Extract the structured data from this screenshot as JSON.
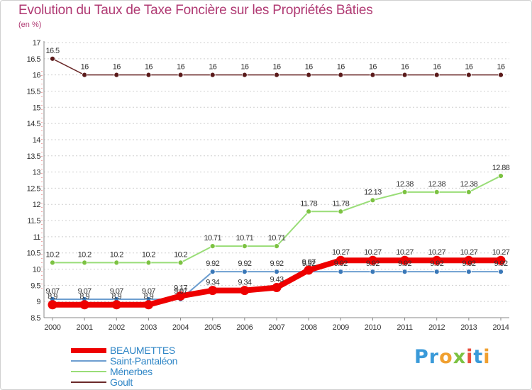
{
  "title": "Evolution du Taux de Taxe Foncière sur les Propriétés Bâties",
  "unit_label": "(en %)",
  "logo_text": "Proxiti",
  "colors": {
    "title": "#b03a73",
    "legend_text": "#2f86c6",
    "grid": "#cccccc"
  },
  "chart_data": {
    "type": "line",
    "title": "Evolution du Taux de Taxe Foncière sur les Propriétés Bâties",
    "ylabel": "(en %)",
    "xlabel": "",
    "x": [
      "2000",
      "2001",
      "2002",
      "2003",
      "2004",
      "2005",
      "2006",
      "2007",
      "2008",
      "2009",
      "2010",
      "2011",
      "2012",
      "2013",
      "2014"
    ],
    "ylim": [
      8.5,
      17
    ],
    "yticks": [
      "8.5",
      "9",
      "9.5",
      "10",
      "10.5",
      "11",
      "11.5",
      "12",
      "12.5",
      "13",
      "13.5",
      "14",
      "14.5",
      "15",
      "15.5",
      "16",
      "16.5",
      "17"
    ],
    "grid": "dotted horizontal",
    "legend_position": "bottom-left",
    "series": [
      {
        "name": "BEAUMETTES",
        "color": "#ee0000",
        "values": [
          8.9,
          8.9,
          8.9,
          8.9,
          9.17,
          9.34,
          9.34,
          9.43,
          9.97,
          10.27,
          10.27,
          10.27,
          10.27,
          10.27,
          10.27
        ],
        "labels": [
          "8.9",
          "8.9",
          "8.9",
          "8.9",
          "9.17",
          "9.34",
          "9.34",
          "9.43",
          "9.97",
          "10.27",
          "10.27",
          "10.27",
          "10.27",
          "10.27",
          "10.27"
        ]
      },
      {
        "name": "Saint-Pantaléon",
        "color": "#6d9ed0",
        "values": [
          9.07,
          9.07,
          9.07,
          9.07,
          9.07,
          9.92,
          9.92,
          9.92,
          9.92,
          9.92,
          9.92,
          9.92,
          9.92,
          9.92,
          9.92
        ],
        "labels": [
          "9.07",
          "9.07",
          "9.07",
          "9.07",
          "9.07",
          "9.92",
          "9.92",
          "9.92",
          "9.92",
          "9.92",
          "9.92",
          "9.92",
          "9.92",
          "9.92",
          "9.92"
        ]
      },
      {
        "name": "Ménerbes",
        "color": "#99dd77",
        "values": [
          10.2,
          10.2,
          10.2,
          10.2,
          10.2,
          10.71,
          10.71,
          10.71,
          11.78,
          11.78,
          12.13,
          12.38,
          12.38,
          12.38,
          12.88
        ],
        "labels": [
          "10.2",
          "10.2",
          "10.2",
          "10.2",
          "10.2",
          "10.71",
          "10.71",
          "10.71",
          "11.78",
          "11.78",
          "12.13",
          "12.38",
          "12.38",
          "12.38",
          "12.88"
        ]
      },
      {
        "name": "Goult",
        "color": "#6b2a2a",
        "values": [
          16.5,
          16,
          16,
          16,
          16,
          16,
          16,
          16,
          16,
          16,
          16,
          16,
          16,
          16,
          16
        ],
        "labels": [
          "16.5",
          "16",
          "16",
          "16",
          "16",
          "16",
          "16",
          "16",
          "16",
          "16",
          "16",
          "16",
          "16",
          "16",
          "16"
        ]
      }
    ]
  }
}
